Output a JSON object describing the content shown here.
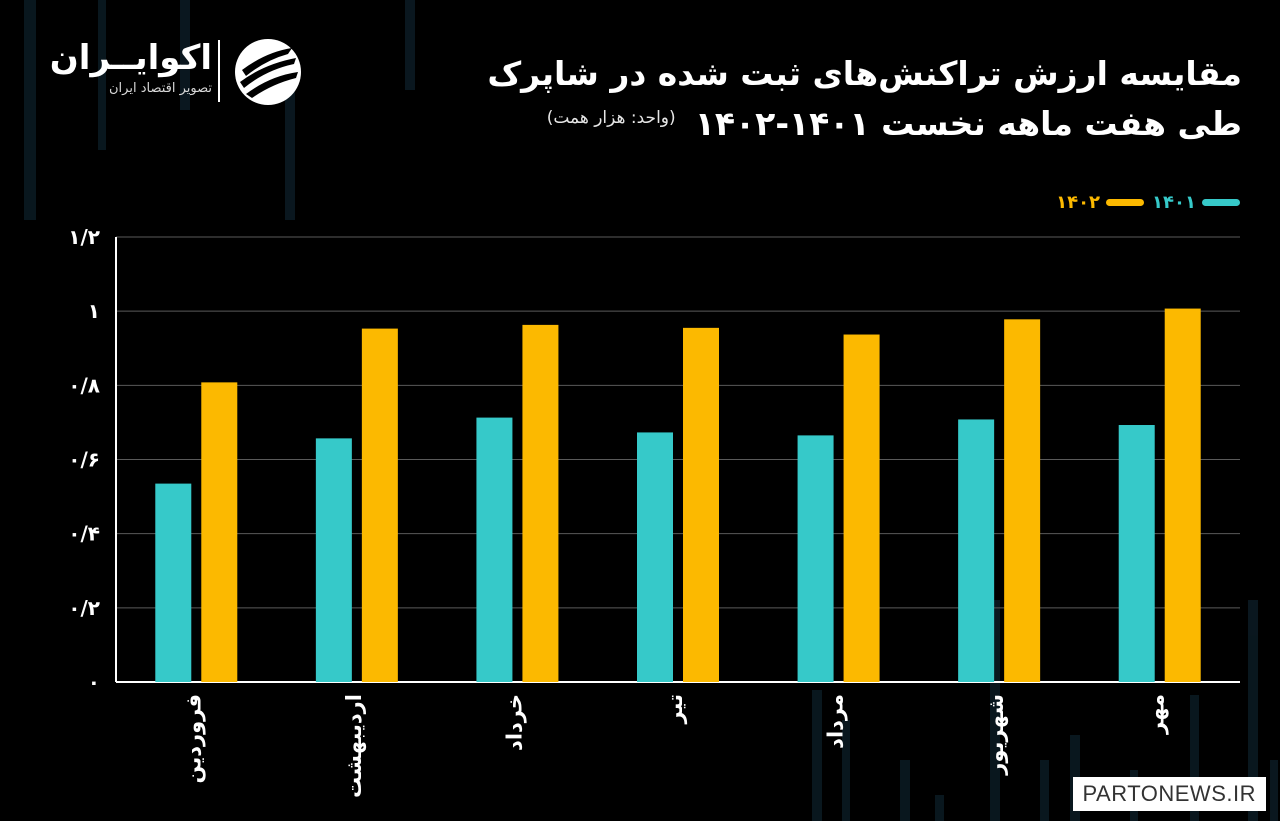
{
  "header": {
    "title": "مقایسه ارزش تراکنش‌های ثبت شده در شاپرک",
    "subtitle": "طی هفت ماهه نخست ۱۴۰۱-۱۴۰۲",
    "unit": "(واحد: هزار همت)"
  },
  "logo": {
    "name": "اکوایــران",
    "tagline": "تصویر اقتصاد ایران",
    "icon": "ecoiran-logo-icon"
  },
  "colors": {
    "background": "#000000",
    "series_1401": "#36c9c9",
    "series_1402": "#fcb900",
    "grid": "#5a5a5a",
    "axis": "#ffffff"
  },
  "watermark": "PARTONEWS.IR",
  "chart_data": {
    "type": "bar",
    "categories": [
      "فروردین",
      "اردیبهشت",
      "خرداد",
      "تیر",
      "مرداد",
      "شهریور",
      "مهر"
    ],
    "series": [
      {
        "name": "۱۴۰۱",
        "values": [
          0.535,
          0.657,
          0.713,
          0.673,
          0.665,
          0.708,
          0.693
        ]
      },
      {
        "name": "۱۴۰۲",
        "values": [
          0.808,
          0.953,
          0.963,
          0.955,
          0.937,
          0.978,
          1.007
        ]
      }
    ],
    "yticks": [
      "۰",
      "۰/۲",
      "۰/۴",
      "۰/۶",
      "۰/۸",
      "۱",
      "۱/۲"
    ],
    "ylim": [
      0,
      1.2
    ],
    "grid": true,
    "legend_position": "top-right"
  }
}
